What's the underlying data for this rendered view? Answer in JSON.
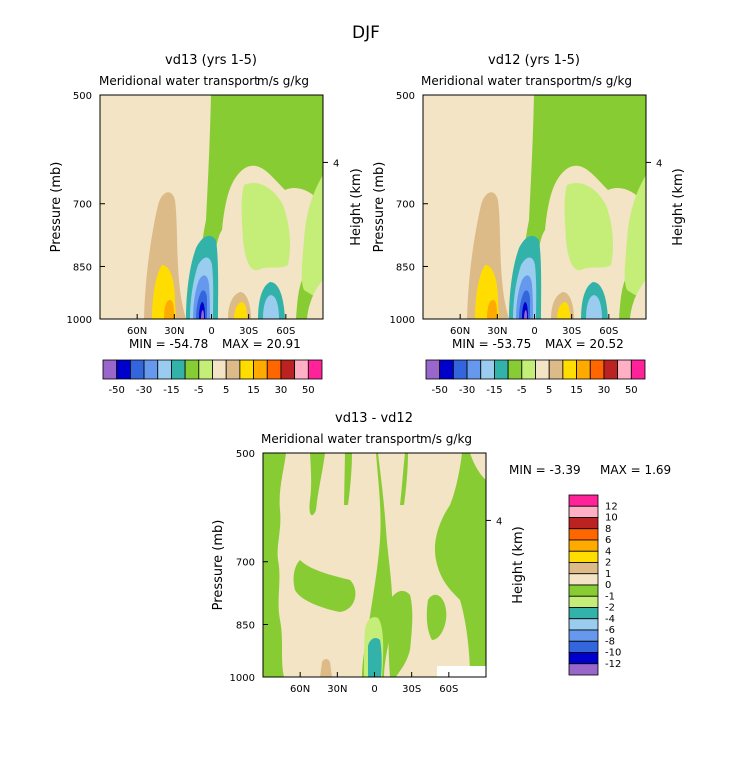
{
  "figure": {
    "title": "DJF"
  },
  "chart_data": [
    {
      "type": "contour",
      "title": "vd13 (yrs 1-5)",
      "subtitle": "Meridional water transport",
      "units": "m/s g/kg",
      "ylabel": "Pressure (mb)",
      "y2label": "Height (km)",
      "y_ticks": [
        "500",
        "700",
        "850",
        "1000"
      ],
      "y_values": [
        500,
        700,
        850,
        1000
      ],
      "y2_ticks": [
        "4"
      ],
      "x_ticks": [
        "60N",
        "30N",
        "0",
        "30S",
        "60S"
      ],
      "x_values": [
        60,
        30,
        0,
        -30,
        -60
      ],
      "xlim": [
        90,
        -90
      ],
      "ylim": [
        500,
        1000
      ],
      "min_label": "MIN = -54.78",
      "max_label": "MAX = 20.91",
      "min": -54.78,
      "max": 20.91,
      "legend_labels": [
        "-50",
        "-30",
        "-15",
        "-5",
        "5",
        "15",
        "30",
        "50"
      ]
    },
    {
      "type": "contour",
      "title": "vd12 (yrs 1-5)",
      "subtitle": "Meridional water transport",
      "units": "m/s g/kg",
      "ylabel": "Pressure (mb)",
      "y2label": "Height (km)",
      "y_ticks": [
        "500",
        "700",
        "850",
        "1000"
      ],
      "y_values": [
        500,
        700,
        850,
        1000
      ],
      "y2_ticks": [
        "4"
      ],
      "x_ticks": [
        "60N",
        "30N",
        "0",
        "30S",
        "60S"
      ],
      "x_values": [
        60,
        30,
        0,
        -30,
        -60
      ],
      "xlim": [
        90,
        -90
      ],
      "ylim": [
        500,
        1000
      ],
      "min_label": "MIN = -53.75",
      "max_label": "MAX = 20.52",
      "min": -53.75,
      "max": 20.52,
      "legend_labels": [
        "-50",
        "-30",
        "-15",
        "-5",
        "5",
        "15",
        "30",
        "50"
      ]
    },
    {
      "type": "contour",
      "title": "vd13 - vd12",
      "subtitle": "Meridional water transport",
      "units": "m/s g/kg",
      "ylabel": "Pressure (mb)",
      "y2label": "Height (km)",
      "y_ticks": [
        "500",
        "700",
        "850",
        "1000"
      ],
      "y_values": [
        500,
        700,
        850,
        1000
      ],
      "y2_ticks": [
        "4"
      ],
      "x_ticks": [
        "60N",
        "30N",
        "0",
        "30S",
        "60S"
      ],
      "x_values": [
        60,
        30,
        0,
        -30,
        -60
      ],
      "xlim": [
        90,
        -90
      ],
      "ylim": [
        500,
        1000
      ],
      "min_label": "MIN = -3.39",
      "max_label": "MAX = 1.69",
      "min": -3.39,
      "max": 1.69,
      "legend_labels": [
        "12",
        "10",
        "8",
        "6",
        "4",
        "2",
        "1",
        "0",
        "-1",
        "-2",
        "-4",
        "-6",
        "-8",
        "-10",
        "-12"
      ]
    }
  ],
  "palette": {
    "full": [
      "#9966cc",
      "#0000cc",
      "#3366dd",
      "#6699ee",
      "#99ccee",
      "#33b2aa",
      "#88cc33",
      "#c4ee77",
      "#f2e4c4",
      "#ddbb88",
      "#ffdd00",
      "#ffaa00",
      "#ff6600",
      "#bb2222",
      "#ffb0c4",
      "#ff2299"
    ],
    "diff": [
      "#ff2299",
      "#ffb0c4",
      "#bb2222",
      "#ff6600",
      "#ffaa00",
      "#ffdd00",
      "#ddbb88",
      "#f2e4c4",
      "#88cc33",
      "#c4ee77",
      "#33b2aa",
      "#99ccee",
      "#6699ee",
      "#3366dd",
      "#0000cc",
      "#9966cc"
    ]
  }
}
